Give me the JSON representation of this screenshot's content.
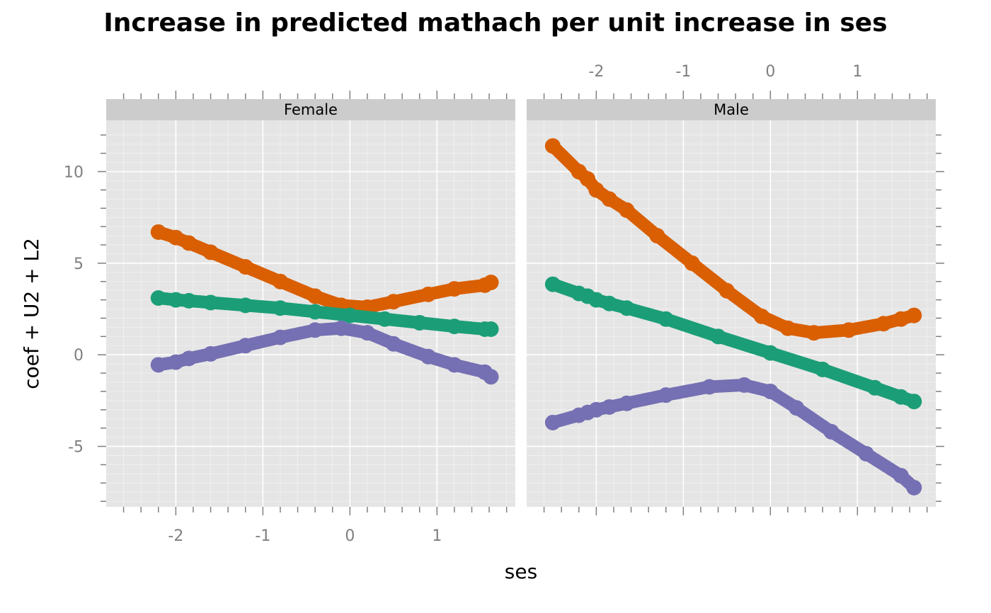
{
  "chart_data": {
    "type": "scatter",
    "title": "Increase in predicted mathach per unit increase in ses",
    "xlabel": "ses",
    "ylabel": "coef + U2 + L2",
    "xlim": [
      -2.8,
      1.9
    ],
    "ylim": [
      -8.3,
      12.8
    ],
    "x_ticks": [
      -2,
      -1,
      0,
      1
    ],
    "y_ticks": [
      -5,
      0,
      5,
      10
    ],
    "grid": true,
    "panels": [
      {
        "name": "Female",
        "series": [
          {
            "color": "#D95F02",
            "marker": "circle",
            "x": [
              -2.2,
              -2.0,
              -1.85,
              -1.6,
              -1.2,
              -0.8,
              -0.4,
              -0.1,
              0.2,
              0.5,
              0.9,
              1.2,
              1.55,
              1.62
            ],
            "y": [
              6.7,
              6.4,
              6.1,
              5.6,
              4.8,
              4.0,
              3.2,
              2.7,
              2.6,
              2.9,
              3.3,
              3.6,
              3.8,
              3.95
            ]
          },
          {
            "color": "#1B9E77",
            "marker": "circle",
            "x": [
              -2.2,
              -2.0,
              -1.85,
              -1.6,
              -1.2,
              -0.8,
              -0.4,
              0.0,
              0.4,
              0.8,
              1.2,
              1.55,
              1.62
            ],
            "y": [
              3.1,
              3.0,
              2.95,
              2.85,
              2.7,
              2.55,
              2.35,
              2.15,
              1.95,
              1.75,
              1.55,
              1.4,
              1.4
            ]
          },
          {
            "color": "#7570B3",
            "marker": "circle",
            "x": [
              -2.2,
              -2.0,
              -1.85,
              -1.6,
              -1.2,
              -0.8,
              -0.4,
              -0.1,
              0.2,
              0.5,
              0.9,
              1.2,
              1.55,
              1.62
            ],
            "y": [
              -0.55,
              -0.4,
              -0.2,
              0.05,
              0.5,
              0.95,
              1.35,
              1.45,
              1.2,
              0.6,
              -0.1,
              -0.55,
              -0.95,
              -1.2
            ]
          }
        ]
      },
      {
        "name": "Male",
        "series": [
          {
            "color": "#D95F02",
            "marker": "circle",
            "x": [
              -2.5,
              -2.2,
              -2.1,
              -2.0,
              -1.85,
              -1.65,
              -1.3,
              -0.9,
              -0.5,
              -0.1,
              0.2,
              0.5,
              0.9,
              1.3,
              1.5,
              1.65
            ],
            "y": [
              11.4,
              10.0,
              9.6,
              9.0,
              8.5,
              7.9,
              6.5,
              5.0,
              3.5,
              2.1,
              1.45,
              1.2,
              1.35,
              1.7,
              1.95,
              2.15
            ]
          },
          {
            "color": "#1B9E77",
            "marker": "circle",
            "x": [
              -2.5,
              -2.2,
              -2.1,
              -2.0,
              -1.85,
              -1.65,
              -1.2,
              -0.6,
              0.0,
              0.6,
              1.2,
              1.5,
              1.65
            ],
            "y": [
              3.85,
              3.35,
              3.2,
              3.0,
              2.8,
              2.55,
              1.95,
              1.0,
              0.1,
              -0.8,
              -1.8,
              -2.3,
              -2.55
            ]
          },
          {
            "color": "#7570B3",
            "marker": "circle",
            "x": [
              -2.5,
              -2.2,
              -2.1,
              -2.0,
              -1.85,
              -1.65,
              -1.2,
              -0.7,
              -0.3,
              0.0,
              0.3,
              0.7,
              1.1,
              1.5,
              1.65
            ],
            "y": [
              -3.7,
              -3.3,
              -3.15,
              -3.0,
              -2.85,
              -2.65,
              -2.2,
              -1.75,
              -1.65,
              -2.0,
              -2.9,
              -4.2,
              -5.4,
              -6.6,
              -7.25
            ]
          }
        ]
      }
    ]
  }
}
